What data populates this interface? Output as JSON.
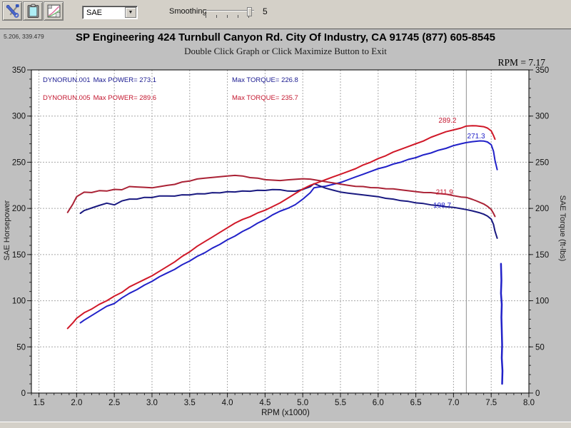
{
  "toolbar": {
    "correction_value": "SAE",
    "smoothing_label": "Smoothing",
    "smoothing_value": "5"
  },
  "graph": {
    "coords_readout": "5.206, 339.479",
    "title": "SP Engineering 424 Turnbull Canyon Rd. City Of Industry, CA 91745 (877) 605-8545",
    "subtitle": "Double Click Graph or Click Maximize Button to Exit",
    "rpm_readout": "RPM = 7.17"
  },
  "legend": {
    "runs": [
      {
        "name": "DYNORUN.001",
        "max_power": "Max POWER= 273.1",
        "max_torque": "Max TORQUE= 226.8",
        "color": "#1a1a90"
      },
      {
        "name": "DYNORUN.005",
        "max_power": "Max POWER= 289.6",
        "max_torque": "Max TORQUE= 235.7",
        "color": "#c41830"
      }
    ]
  },
  "chart_data": {
    "type": "line",
    "xlabel": "RPM (x1000)",
    "ylabel_left": "SAE Horsepower",
    "ylabel_right": "SAE Torque (ft-lbs)",
    "xlim": [
      1.4,
      8.0
    ],
    "ylim": [
      0,
      350
    ],
    "xticks": [
      "1.5",
      "2.0",
      "2.5",
      "3.0",
      "3.5",
      "4.0",
      "4.5",
      "5.0",
      "5.5",
      "6.0",
      "6.5",
      "7.0",
      "7.5",
      "8.0"
    ],
    "yticks": [
      0,
      50,
      100,
      150,
      200,
      250,
      300,
      350
    ],
    "x_minor_step": 0.1,
    "y_minor_step": 10,
    "grid": true,
    "grid_color": "#a8a8a8",
    "cursor_rpm": 7.17,
    "cursor_color": "#909090",
    "series": [
      {
        "name": "DYNORUN.001 horsepower",
        "color": "#2121c8",
        "width": 2,
        "points": [
          [
            2.05,
            76
          ],
          [
            2.1,
            79
          ],
          [
            2.2,
            84
          ],
          [
            2.3,
            89
          ],
          [
            2.4,
            94
          ],
          [
            2.5,
            97
          ],
          [
            2.6,
            103
          ],
          [
            2.7,
            108
          ],
          [
            2.8,
            112
          ],
          [
            2.9,
            117
          ],
          [
            3.0,
            121
          ],
          [
            3.1,
            126
          ],
          [
            3.2,
            130
          ],
          [
            3.3,
            134
          ],
          [
            3.4,
            139
          ],
          [
            3.5,
            143
          ],
          [
            3.6,
            148
          ],
          [
            3.7,
            152
          ],
          [
            3.8,
            157
          ],
          [
            3.9,
            161
          ],
          [
            4.0,
            166
          ],
          [
            4.1,
            170
          ],
          [
            4.2,
            175
          ],
          [
            4.3,
            179
          ],
          [
            4.4,
            184
          ],
          [
            4.5,
            188
          ],
          [
            4.6,
            193
          ],
          [
            4.7,
            197
          ],
          [
            4.8,
            200
          ],
          [
            4.9,
            204
          ],
          [
            5.0,
            210
          ],
          [
            5.1,
            217
          ],
          [
            5.15,
            222.4
          ],
          [
            5.2,
            223
          ],
          [
            5.3,
            224
          ],
          [
            5.4,
            226
          ],
          [
            5.5,
            228
          ],
          [
            5.6,
            231
          ],
          [
            5.7,
            234
          ],
          [
            5.8,
            237
          ],
          [
            5.9,
            240
          ],
          [
            6.0,
            243
          ],
          [
            6.1,
            245
          ],
          [
            6.2,
            248
          ],
          [
            6.3,
            250
          ],
          [
            6.4,
            253
          ],
          [
            6.5,
            255
          ],
          [
            6.6,
            258
          ],
          [
            6.7,
            260
          ],
          [
            6.8,
            263
          ],
          [
            6.9,
            265
          ],
          [
            7.0,
            268
          ],
          [
            7.1,
            270
          ],
          [
            7.17,
            271.3
          ],
          [
            7.25,
            272.3
          ],
          [
            7.35,
            273.1
          ],
          [
            7.4,
            273
          ],
          [
            7.45,
            272
          ],
          [
            7.5,
            269
          ],
          [
            7.53,
            262
          ],
          [
            7.55,
            252
          ],
          [
            7.58,
            242
          ]
        ]
      },
      {
        "name": "DYNORUN.001 torque",
        "color": "#191980",
        "width": 2,
        "points": [
          [
            2.05,
            194.7
          ],
          [
            2.1,
            197.6
          ],
          [
            2.2,
            200.5
          ],
          [
            2.3,
            203.2
          ],
          [
            2.4,
            205.7
          ],
          [
            2.5,
            203.8
          ],
          [
            2.6,
            208.1
          ],
          [
            2.7,
            210.1
          ],
          [
            2.8,
            210.1
          ],
          [
            2.9,
            211.9
          ],
          [
            3.0,
            211.8
          ],
          [
            3.1,
            213.5
          ],
          [
            3.2,
            213.4
          ],
          [
            3.3,
            213.3
          ],
          [
            3.4,
            214.7
          ],
          [
            3.5,
            214.6
          ],
          [
            3.6,
            215.9
          ],
          [
            3.7,
            215.8
          ],
          [
            3.8,
            217.0
          ],
          [
            3.9,
            216.8
          ],
          [
            4.0,
            218.0
          ],
          [
            4.1,
            217.8
          ],
          [
            4.2,
            218.8
          ],
          [
            4.3,
            218.6
          ],
          [
            4.4,
            219.6
          ],
          [
            4.5,
            219.4
          ],
          [
            4.6,
            220.4
          ],
          [
            4.7,
            220.2
          ],
          [
            4.8,
            218.8
          ],
          [
            4.9,
            218.6
          ],
          [
            5.0,
            220.6
          ],
          [
            5.1,
            223.5
          ],
          [
            5.15,
            226.8
          ],
          [
            5.2,
            225.2
          ],
          [
            5.3,
            222.0
          ],
          [
            5.4,
            219.8
          ],
          [
            5.5,
            217.7
          ],
          [
            5.6,
            216.6
          ],
          [
            5.7,
            215.6
          ],
          [
            5.8,
            214.6
          ],
          [
            5.9,
            213.6
          ],
          [
            6.0,
            212.7
          ],
          [
            6.1,
            210.9
          ],
          [
            6.2,
            210.1
          ],
          [
            6.3,
            208.4
          ],
          [
            6.4,
            207.6
          ],
          [
            6.5,
            206.0
          ],
          [
            6.6,
            205.3
          ],
          [
            6.7,
            203.8
          ],
          [
            6.8,
            203.1
          ],
          [
            6.9,
            201.7
          ],
          [
            7.0,
            201.1
          ],
          [
            7.1,
            199.7
          ],
          [
            7.17,
            198.7
          ],
          [
            7.25,
            197.3
          ],
          [
            7.35,
            195.2
          ],
          [
            7.4,
            193.8
          ],
          [
            7.45,
            191.7
          ],
          [
            7.5,
            188.4
          ],
          [
            7.53,
            182.7
          ],
          [
            7.55,
            175.3
          ],
          [
            7.58,
            167.7
          ]
        ]
      },
      {
        "name": "DYNORUN.005 horsepower",
        "color": "#d01828",
        "width": 2,
        "points": [
          [
            1.88,
            70
          ],
          [
            1.95,
            76
          ],
          [
            2.0,
            81
          ],
          [
            2.1,
            87
          ],
          [
            2.2,
            91
          ],
          [
            2.3,
            96
          ],
          [
            2.4,
            100
          ],
          [
            2.5,
            105
          ],
          [
            2.6,
            109
          ],
          [
            2.7,
            115
          ],
          [
            2.8,
            119
          ],
          [
            2.9,
            123
          ],
          [
            3.0,
            127
          ],
          [
            3.1,
            132
          ],
          [
            3.2,
            137
          ],
          [
            3.3,
            142
          ],
          [
            3.4,
            148
          ],
          [
            3.5,
            153
          ],
          [
            3.6,
            159
          ],
          [
            3.7,
            164
          ],
          [
            3.8,
            169
          ],
          [
            3.9,
            174
          ],
          [
            4.0,
            179
          ],
          [
            4.1,
            184
          ],
          [
            4.2,
            188
          ],
          [
            4.3,
            191
          ],
          [
            4.4,
            195
          ],
          [
            4.5,
            198
          ],
          [
            4.6,
            202
          ],
          [
            4.7,
            206
          ],
          [
            4.8,
            211
          ],
          [
            4.9,
            216
          ],
          [
            5.0,
            221
          ],
          [
            5.1,
            225
          ],
          [
            5.2,
            228
          ],
          [
            5.3,
            231
          ],
          [
            5.4,
            234
          ],
          [
            5.5,
            237
          ],
          [
            5.6,
            240
          ],
          [
            5.7,
            243
          ],
          [
            5.8,
            247
          ],
          [
            5.9,
            250
          ],
          [
            6.0,
            254
          ],
          [
            6.1,
            257
          ],
          [
            6.2,
            261
          ],
          [
            6.3,
            264
          ],
          [
            6.4,
            267
          ],
          [
            6.5,
            270
          ],
          [
            6.6,
            273
          ],
          [
            6.7,
            277
          ],
          [
            6.8,
            280
          ],
          [
            6.9,
            283
          ],
          [
            7.0,
            285
          ],
          [
            7.1,
            287
          ],
          [
            7.17,
            289.2
          ],
          [
            7.25,
            289.6
          ],
          [
            7.3,
            289.4
          ],
          [
            7.4,
            288.5
          ],
          [
            7.45,
            287
          ],
          [
            7.5,
            284
          ],
          [
            7.53,
            279
          ],
          [
            7.55,
            275
          ]
        ]
      },
      {
        "name": "DYNORUN.005 torque",
        "color": "#aa2235",
        "width": 2,
        "points": [
          [
            1.88,
            195.6
          ],
          [
            1.95,
            204.7
          ],
          [
            2.0,
            212.7
          ],
          [
            2.1,
            217.6
          ],
          [
            2.2,
            217.2
          ],
          [
            2.3,
            219.2
          ],
          [
            2.4,
            218.8
          ],
          [
            2.5,
            220.6
          ],
          [
            2.6,
            220.2
          ],
          [
            2.7,
            223.7
          ],
          [
            2.8,
            223.2
          ],
          [
            2.9,
            222.8
          ],
          [
            3.0,
            222.3
          ],
          [
            3.1,
            223.6
          ],
          [
            3.2,
            224.9
          ],
          [
            3.3,
            226.0
          ],
          [
            3.4,
            228.6
          ],
          [
            3.5,
            229.6
          ],
          [
            3.6,
            231.9
          ],
          [
            3.7,
            232.8
          ],
          [
            3.8,
            233.6
          ],
          [
            3.9,
            234.3
          ],
          [
            4.0,
            235.0
          ],
          [
            4.1,
            235.7
          ],
          [
            4.2,
            235.1
          ],
          [
            4.3,
            233.3
          ],
          [
            4.4,
            232.8
          ],
          [
            4.5,
            231.1
          ],
          [
            4.6,
            230.6
          ],
          [
            4.7,
            230.2
          ],
          [
            4.8,
            230.9
          ],
          [
            4.9,
            231.5
          ],
          [
            5.0,
            232.1
          ],
          [
            5.1,
            231.7
          ],
          [
            5.2,
            230.3
          ],
          [
            5.3,
            228.9
          ],
          [
            5.4,
            227.6
          ],
          [
            5.5,
            226.3
          ],
          [
            5.6,
            225.1
          ],
          [
            5.7,
            223.9
          ],
          [
            5.8,
            223.7
          ],
          [
            5.9,
            222.5
          ],
          [
            6.0,
            222.3
          ],
          [
            6.1,
            221.3
          ],
          [
            6.2,
            221.1
          ],
          [
            6.3,
            220.1
          ],
          [
            6.4,
            219.1
          ],
          [
            6.5,
            218.2
          ],
          [
            6.6,
            217.2
          ],
          [
            6.7,
            217.1
          ],
          [
            6.8,
            216.2
          ],
          [
            6.9,
            215.4
          ],
          [
            7.0,
            213.8
          ],
          [
            7.1,
            212.3
          ],
          [
            7.17,
            211.9
          ],
          [
            7.25,
            209.8
          ],
          [
            7.3,
            208.2
          ],
          [
            7.4,
            204.8
          ],
          [
            7.45,
            202.3
          ],
          [
            7.5,
            198.9
          ],
          [
            7.53,
            194.6
          ],
          [
            7.55,
            191.3
          ]
        ]
      },
      {
        "name": "DYNORUN.001 rundown tail",
        "color": "#2121c8",
        "width": 2.5,
        "points": [
          [
            7.63,
            140
          ],
          [
            7.635,
            122
          ],
          [
            7.63,
            108
          ],
          [
            7.64,
            96
          ],
          [
            7.635,
            82
          ],
          [
            7.64,
            68
          ],
          [
            7.645,
            52
          ],
          [
            7.64,
            38
          ],
          [
            7.65,
            24
          ],
          [
            7.645,
            10
          ]
        ]
      }
    ],
    "annotations": [
      {
        "text": "289.2",
        "x": 6.92,
        "y": 293,
        "color": "#c41830"
      },
      {
        "text": "271.3",
        "x": 7.3,
        "y": 276,
        "color": "#2121c8"
      },
      {
        "text": "211.9",
        "x": 6.88,
        "y": 215,
        "color": "#c41830"
      },
      {
        "text": "198.7",
        "x": 6.85,
        "y": 201,
        "color": "#2121c8"
      }
    ]
  }
}
